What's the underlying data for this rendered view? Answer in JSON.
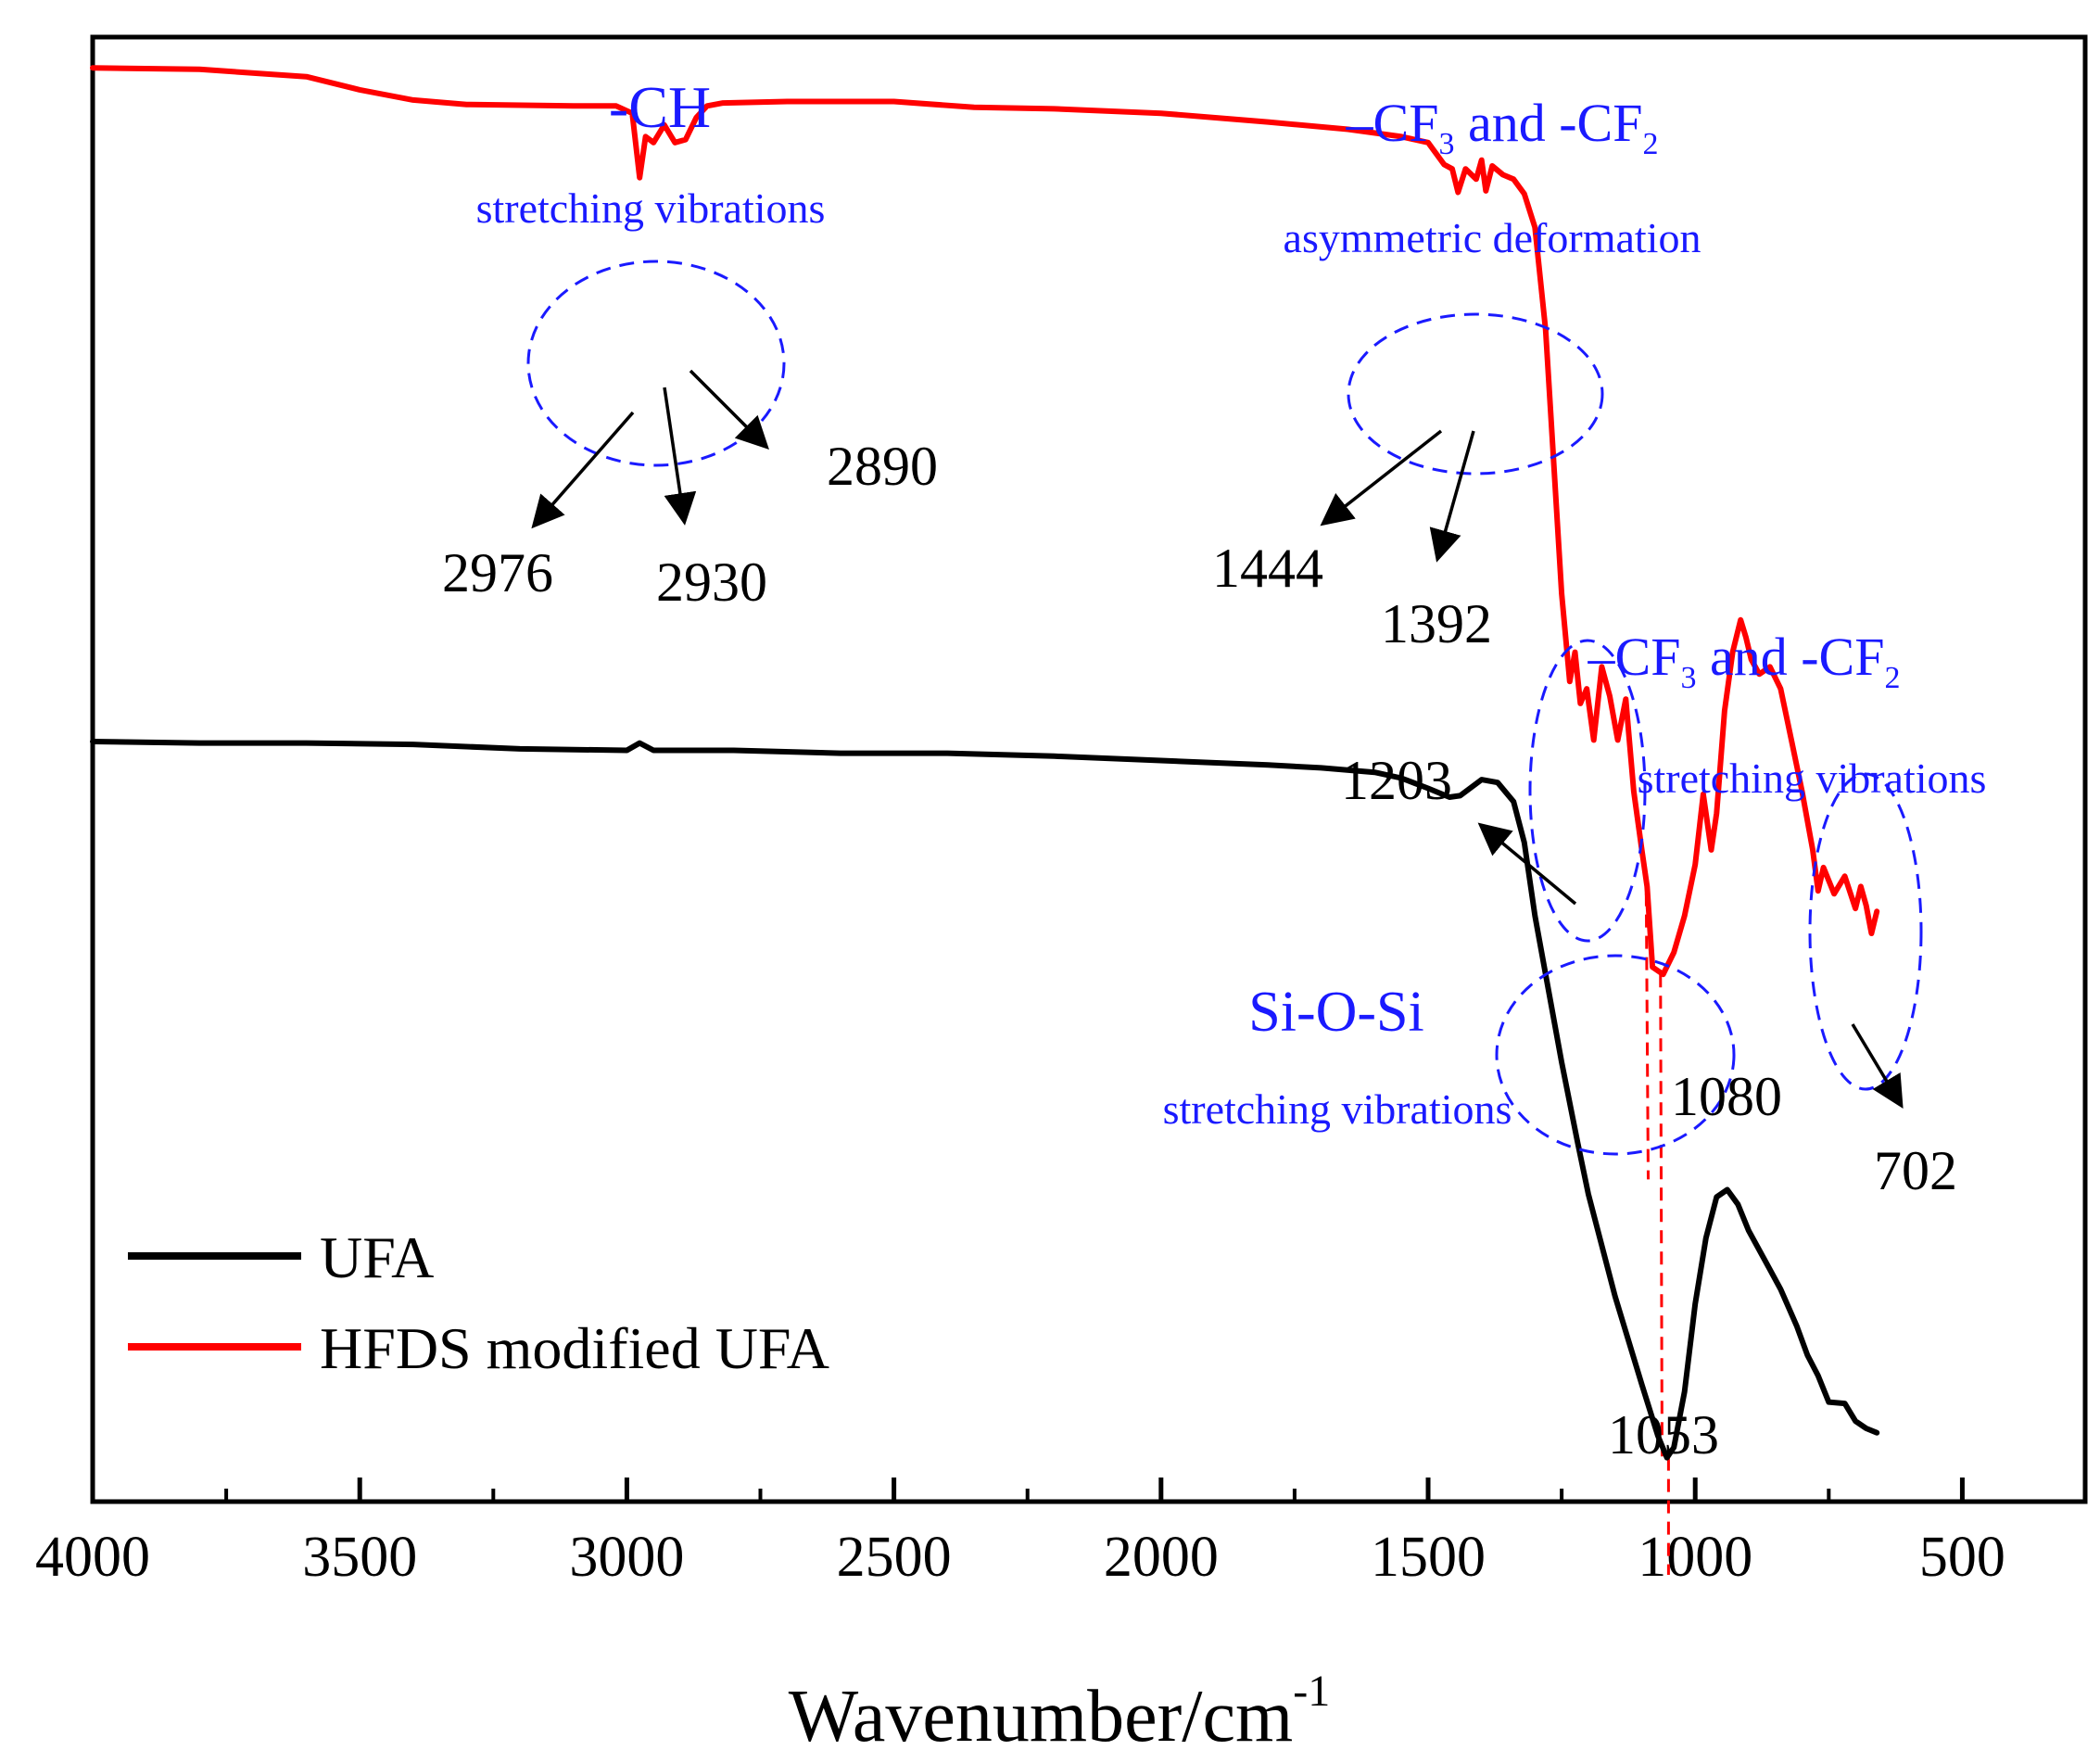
{
  "chart_data": {
    "type": "line",
    "title": "",
    "xlabel": "Wavenumber/cm",
    "xlabel_sup": "-1",
    "ylabel": "",
    "xlim": [
      4000,
      270
    ],
    "ylim": [
      0,
      100
    ],
    "x_reversed": true,
    "xticks": [
      4000,
      3500,
      3000,
      2500,
      2000,
      1500,
      1000,
      500
    ],
    "xtick_labels": [
      "4000",
      "3500",
      "3000",
      "2500",
      "2000",
      "1500",
      "1000",
      "500"
    ],
    "yticks_shown": false,
    "grid": false,
    "legend": {
      "placement": "bottom-left",
      "entries": [
        {
          "label": "UFA",
          "color": "#000000"
        },
        {
          "label": "HFDS modified UFA",
          "color": "#ff0000"
        }
      ]
    },
    "series": [
      {
        "name": "UFA",
        "color": "#000000",
        "x": [
          4000,
          3800,
          3600,
          3400,
          3200,
          3000,
          2976,
          2950,
          2800,
          2600,
          2400,
          2200,
          2000,
          1800,
          1700,
          1600,
          1550,
          1500,
          1460,
          1440,
          1400,
          1370,
          1340,
          1320,
          1300,
          1280,
          1250,
          1220,
          1200,
          1150,
          1100,
          1070,
          1053,
          1040,
          1020,
          1000,
          980,
          960,
          940,
          920,
          900,
          870,
          840,
          810,
          790,
          770,
          750,
          720,
          700,
          680,
          660
        ],
        "values": [
          51.9,
          51.8,
          51.8,
          51.7,
          51.4,
          51.3,
          51.8,
          51.3,
          51.3,
          51.1,
          51.1,
          50.9,
          50.6,
          50.3,
          50.1,
          49.8,
          49.4,
          48.7,
          48.1,
          48.2,
          49.3,
          49.1,
          47.8,
          45.0,
          40.0,
          36.0,
          30.0,
          24.5,
          21.0,
          14.0,
          8.0,
          4.5,
          3.0,
          3.7,
          7.5,
          13.5,
          18.0,
          20.8,
          21.3,
          20.3,
          18.5,
          16.5,
          14.5,
          12.0,
          10.0,
          8.6,
          6.8,
          6.7,
          5.5,
          5.0,
          4.7
        ]
      },
      {
        "name": "HFDS modified UFA",
        "color": "#ff0000",
        "x": [
          4000,
          3800,
          3600,
          3500,
          3400,
          3300,
          3100,
          3020,
          2990,
          2976,
          2965,
          2950,
          2930,
          2910,
          2890,
          2870,
          2850,
          2820,
          2700,
          2500,
          2350,
          2200,
          2000,
          1800,
          1650,
          1550,
          1500,
          1470,
          1455,
          1444,
          1430,
          1410,
          1400,
          1392,
          1380,
          1360,
          1340,
          1320,
          1300,
          1280,
          1270,
          1250,
          1235,
          1225,
          1215,
          1203,
          1190,
          1175,
          1160,
          1145,
          1130,
          1115,
          1100,
          1090,
          1080,
          1060,
          1040,
          1020,
          1000,
          985,
          970,
          960,
          945,
          930,
          915,
          905,
          895,
          880,
          860,
          840,
          820,
          800,
          780,
          770,
          760,
          740,
          720,
          700,
          690,
          680,
          670,
          660
        ],
        "values": [
          97.9,
          97.8,
          97.3,
          96.4,
          95.7,
          95.4,
          95.3,
          95.3,
          94.8,
          90.4,
          93.2,
          92.8,
          94.0,
          92.8,
          93.0,
          94.5,
          95.3,
          95.5,
          95.6,
          95.6,
          95.2,
          95.1,
          94.8,
          94.2,
          93.7,
          93.2,
          92.8,
          91.3,
          91.0,
          89.4,
          91.0,
          90.3,
          91.6,
          89.5,
          91.2,
          90.6,
          90.3,
          89.3,
          87.0,
          80.0,
          74.0,
          62.0,
          56.0,
          58.0,
          54.5,
          55.5,
          52.0,
          57.0,
          55.0,
          52.0,
          54.8,
          48.5,
          44.5,
          42.0,
          36.5,
          36.0,
          37.5,
          40.0,
          43.5,
          48.3,
          44.5,
          47.0,
          54.0,
          58.0,
          60.2,
          59.0,
          57.5,
          56.5,
          57.0,
          55.5,
          52.0,
          48.5,
          44.5,
          41.7,
          43.3,
          41.5,
          42.7,
          40.5,
          42.0,
          40.7,
          38.8,
          40.3
        ]
      }
    ],
    "peak_labels": [
      {
        "text": "2976",
        "series": "HFDS modified UFA"
      },
      {
        "text": "2930",
        "series": "HFDS modified UFA"
      },
      {
        "text": "2890",
        "series": "HFDS modified UFA"
      },
      {
        "text": "1444",
        "series": "HFDS modified UFA"
      },
      {
        "text": "1392",
        "series": "HFDS modified UFA"
      },
      {
        "text": "1203",
        "series": "HFDS modified UFA"
      },
      {
        "text": "1080",
        "series": "HFDS modified UFA"
      },
      {
        "text": "702",
        "series": "HFDS modified UFA"
      },
      {
        "text": "1053",
        "series": "UFA"
      }
    ],
    "annotations": {
      "ch_title": "-CH",
      "ch_sub": "stretching vibrations",
      "cf_asym_title_a": "–CF",
      "cf_asym_sub3": "3",
      "cf_asym_title_b": " and -CF",
      "cf_asym_sub2": "2",
      "cf_asym_sub": "asymmetric deformation",
      "cf_str_title_a": "–CF",
      "cf_str_sub3": "3",
      "cf_str_title_b": " and -CF",
      "cf_str_sub2": "2",
      "cf_str_sub": "stretching vibrations",
      "sios_title": "Si-O-Si",
      "sios_sub": "stretching vibrations"
    },
    "colors": {
      "ufa": "#000000",
      "hfds": "#ff0000",
      "annotation": "#0000ff",
      "guide": "#ff0000"
    }
  }
}
